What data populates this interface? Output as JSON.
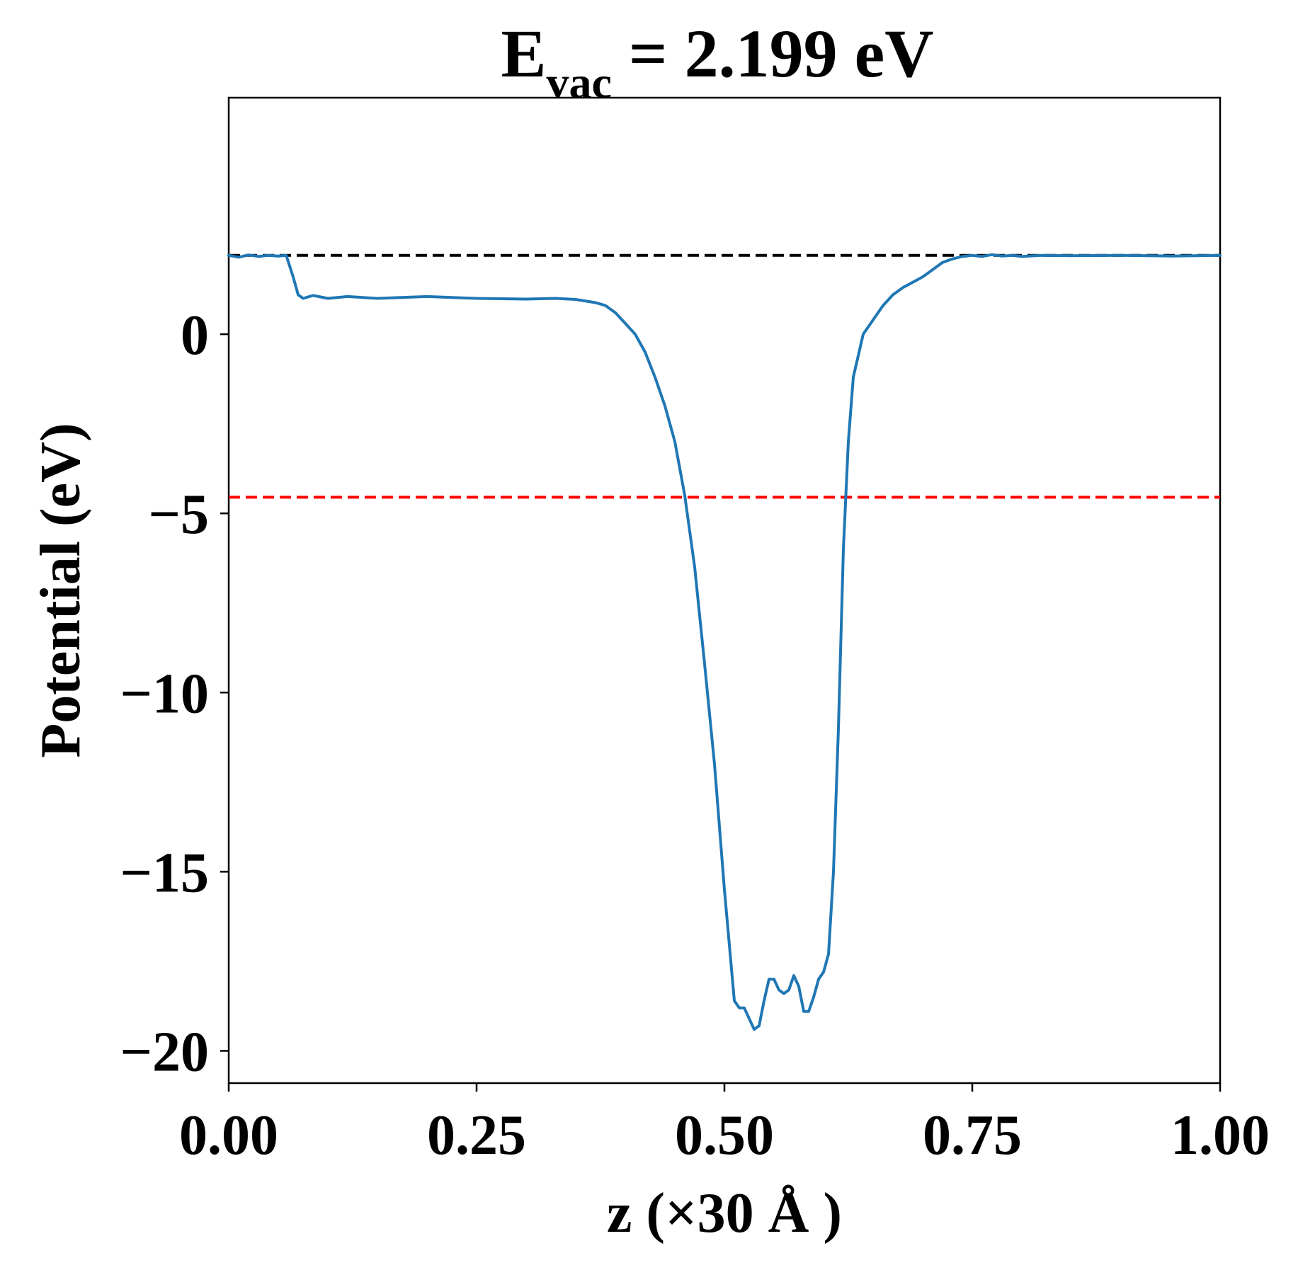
{
  "chart_data": {
    "type": "line",
    "title": {
      "main": "E",
      "subscript": "vac",
      "rest": " = 2.199 eV"
    },
    "xlabel": "z (×30 Å )",
    "ylabel": "Potential (eV)",
    "xlim": [
      0.0,
      1.0
    ],
    "ylim": [
      -20.9,
      6.6
    ],
    "xticks": [
      0.0,
      0.25,
      0.5,
      0.75,
      1.0
    ],
    "xtick_labels": [
      "0.00",
      "0.25",
      "0.50",
      "0.75",
      "1.00"
    ],
    "yticks": [
      0,
      -5,
      -10,
      -15,
      -20
    ],
    "ytick_labels": [
      "0",
      "−5",
      "−10",
      "−15",
      "−20"
    ],
    "grid": false,
    "reference_lines": [
      {
        "y": 2.199,
        "color": "#000000",
        "style": "dashed"
      },
      {
        "y": -4.55,
        "color": "#ff0000",
        "style": "dashed"
      }
    ],
    "series": [
      {
        "color": "#1f77b4",
        "x": [
          0.0,
          0.01,
          0.02,
          0.03,
          0.04,
          0.05,
          0.058,
          0.065,
          0.07,
          0.075,
          0.085,
          0.1,
          0.12,
          0.15,
          0.2,
          0.25,
          0.3,
          0.33,
          0.35,
          0.37,
          0.38,
          0.39,
          0.4,
          0.41,
          0.42,
          0.43,
          0.44,
          0.45,
          0.46,
          0.47,
          0.48,
          0.49,
          0.5,
          0.51,
          0.515,
          0.52,
          0.525,
          0.53,
          0.535,
          0.54,
          0.545,
          0.55,
          0.555,
          0.56,
          0.565,
          0.57,
          0.575,
          0.58,
          0.585,
          0.59,
          0.595,
          0.6,
          0.605,
          0.61,
          0.615,
          0.62,
          0.625,
          0.63,
          0.64,
          0.65,
          0.66,
          0.67,
          0.68,
          0.69,
          0.7,
          0.71,
          0.72,
          0.73,
          0.74,
          0.75,
          0.76,
          0.77,
          0.78,
          0.79,
          0.8,
          0.82,
          0.85,
          0.9,
          0.95,
          1.0
        ],
        "y": [
          2.2,
          2.15,
          2.21,
          2.17,
          2.2,
          2.18,
          2.2,
          1.6,
          1.1,
          1.0,
          1.08,
          1.0,
          1.05,
          1.0,
          1.05,
          1.0,
          0.98,
          1.0,
          0.97,
          0.88,
          0.8,
          0.6,
          0.3,
          0.0,
          -0.5,
          -1.2,
          -2.0,
          -3.0,
          -4.5,
          -6.5,
          -9.2,
          -12.0,
          -15.5,
          -18.6,
          -18.8,
          -18.8,
          -19.1,
          -19.4,
          -19.3,
          -18.6,
          -18.0,
          -18.0,
          -18.3,
          -18.4,
          -18.3,
          -17.9,
          -18.2,
          -18.9,
          -18.9,
          -18.5,
          -18.0,
          -17.8,
          -17.3,
          -15.0,
          -11.0,
          -6.0,
          -3.0,
          -1.2,
          0.0,
          0.4,
          0.8,
          1.1,
          1.3,
          1.45,
          1.6,
          1.8,
          2.0,
          2.1,
          2.17,
          2.2,
          2.17,
          2.22,
          2.18,
          2.2,
          2.17,
          2.2,
          2.19,
          2.2,
          2.18,
          2.2
        ]
      }
    ]
  }
}
